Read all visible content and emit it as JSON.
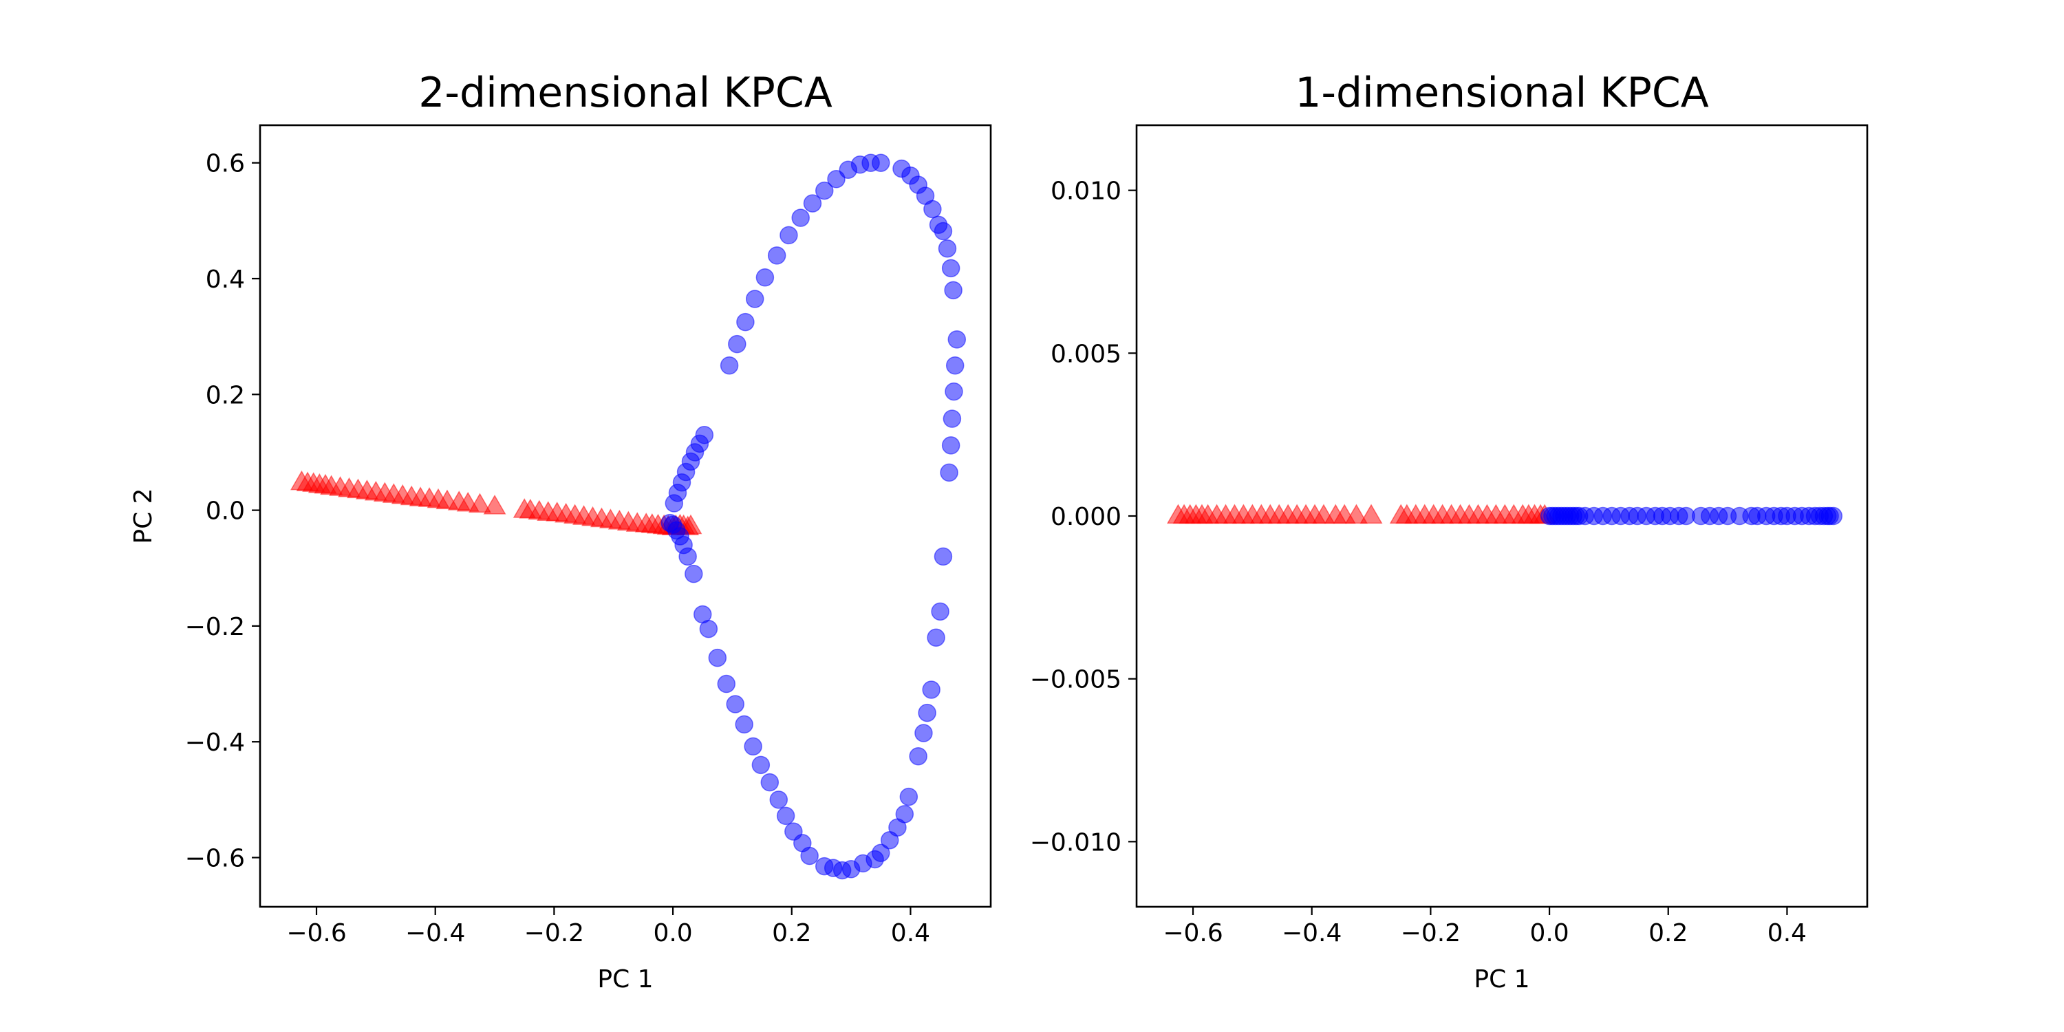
{
  "chart_data": [
    {
      "type": "scatter",
      "title": "2-dimensional KPCA",
      "xlabel": "PC 1",
      "ylabel": "PC 2",
      "xlim": [
        -0.695,
        0.535
      ],
      "ylim": [
        -0.685,
        0.665
      ],
      "xticks": [
        -0.6,
        -0.4,
        -0.2,
        0.0,
        0.2,
        0.4
      ],
      "xtick_labels": [
        "−0.6",
        "−0.4",
        "−0.2",
        "0.0",
        "0.2",
        "0.4"
      ],
      "yticks": [
        -0.6,
        -0.4,
        -0.2,
        0.0,
        0.2,
        0.4,
        0.6
      ],
      "ytick_labels": [
        "−0.6",
        "−0.4",
        "−0.2",
        "0.0",
        "0.2",
        "0.4",
        "0.6"
      ],
      "grid": false,
      "series": [
        {
          "marker": "triangle",
          "color": "#ff0000",
          "alpha": 0.5,
          "points": [
            [
              -0.625,
              0.048
            ],
            [
              -0.615,
              0.046
            ],
            [
              -0.605,
              0.045
            ],
            [
              -0.595,
              0.043
            ],
            [
              -0.585,
              0.042
            ],
            [
              -0.575,
              0.04
            ],
            [
              -0.56,
              0.038
            ],
            [
              -0.545,
              0.036
            ],
            [
              -0.53,
              0.034
            ],
            [
              -0.515,
              0.032
            ],
            [
              -0.5,
              0.03
            ],
            [
              -0.485,
              0.028
            ],
            [
              -0.47,
              0.026
            ],
            [
              -0.455,
              0.024
            ],
            [
              -0.44,
              0.022
            ],
            [
              -0.425,
              0.02
            ],
            [
              -0.41,
              0.019
            ],
            [
              -0.395,
              0.017
            ],
            [
              -0.38,
              0.015
            ],
            [
              -0.36,
              0.013
            ],
            [
              -0.345,
              0.011
            ],
            [
              -0.325,
              0.009
            ],
            [
              -0.3,
              0.006
            ],
            [
              -0.25,
              0.0
            ],
            [
              -0.24,
              -0.001
            ],
            [
              -0.225,
              -0.003
            ],
            [
              -0.21,
              -0.005
            ],
            [
              -0.195,
              -0.006
            ],
            [
              -0.18,
              -0.008
            ],
            [
              -0.165,
              -0.01
            ],
            [
              -0.15,
              -0.012
            ],
            [
              -0.135,
              -0.014
            ],
            [
              -0.12,
              -0.016
            ],
            [
              -0.105,
              -0.018
            ],
            [
              -0.09,
              -0.02
            ],
            [
              -0.075,
              -0.022
            ],
            [
              -0.06,
              -0.024
            ],
            [
              -0.045,
              -0.025
            ],
            [
              -0.035,
              -0.026
            ],
            [
              -0.025,
              -0.027
            ],
            [
              -0.015,
              -0.028
            ],
            [
              -0.008,
              -0.029
            ],
            [
              0.0,
              -0.03
            ],
            [
              0.005,
              -0.028
            ],
            [
              0.012,
              -0.027
            ],
            [
              0.018,
              -0.028
            ],
            [
              0.025,
              -0.03
            ],
            [
              0.03,
              -0.028
            ]
          ]
        },
        {
          "marker": "circle",
          "color": "#0000ff",
          "alpha": 0.5,
          "points": [
            [
              0.002,
              0.012
            ],
            [
              0.008,
              0.03
            ],
            [
              0.015,
              0.048
            ],
            [
              0.022,
              0.066
            ],
            [
              0.03,
              0.084
            ],
            [
              0.037,
              0.1
            ],
            [
              0.045,
              0.115
            ],
            [
              0.053,
              0.13
            ],
            [
              0.095,
              0.25
            ],
            [
              0.108,
              0.287
            ],
            [
              0.122,
              0.325
            ],
            [
              0.138,
              0.365
            ],
            [
              0.155,
              0.402
            ],
            [
              0.175,
              0.44
            ],
            [
              0.195,
              0.475
            ],
            [
              0.215,
              0.505
            ],
            [
              0.235,
              0.53
            ],
            [
              0.255,
              0.552
            ],
            [
              0.275,
              0.572
            ],
            [
              0.295,
              0.588
            ],
            [
              0.315,
              0.597
            ],
            [
              0.333,
              0.6
            ],
            [
              0.35,
              0.6
            ],
            [
              0.385,
              0.59
            ],
            [
              0.4,
              0.578
            ],
            [
              0.413,
              0.562
            ],
            [
              0.425,
              0.543
            ],
            [
              0.437,
              0.52
            ],
            [
              0.447,
              0.493
            ],
            [
              0.455,
              0.482
            ],
            [
              0.462,
              0.452
            ],
            [
              0.468,
              0.418
            ],
            [
              0.472,
              0.38
            ],
            [
              0.478,
              0.295
            ],
            [
              0.475,
              0.25
            ],
            [
              0.473,
              0.205
            ],
            [
              0.47,
              0.158
            ],
            [
              0.468,
              0.112
            ],
            [
              0.465,
              0.065
            ],
            [
              0.455,
              -0.08
            ],
            [
              0.45,
              -0.175
            ],
            [
              0.443,
              -0.22
            ],
            [
              0.435,
              -0.31
            ],
            [
              0.428,
              -0.35
            ],
            [
              0.422,
              -0.385
            ],
            [
              0.413,
              -0.425
            ],
            [
              0.397,
              -0.495
            ],
            [
              0.39,
              -0.525
            ],
            [
              0.378,
              -0.548
            ],
            [
              0.365,
              -0.57
            ],
            [
              0.35,
              -0.592
            ],
            [
              0.34,
              -0.603
            ],
            [
              0.32,
              -0.61
            ],
            [
              0.3,
              -0.62
            ],
            [
              0.285,
              -0.622
            ],
            [
              0.27,
              -0.618
            ],
            [
              0.255,
              -0.615
            ],
            [
              0.23,
              -0.597
            ],
            [
              0.218,
              -0.575
            ],
            [
              0.203,
              -0.555
            ],
            [
              0.19,
              -0.528
            ],
            [
              0.178,
              -0.5
            ],
            [
              0.163,
              -0.47
            ],
            [
              0.148,
              -0.44
            ],
            [
              0.135,
              -0.408
            ],
            [
              0.12,
              -0.37
            ],
            [
              0.105,
              -0.335
            ],
            [
              0.09,
              -0.3
            ],
            [
              0.075,
              -0.255
            ],
            [
              0.06,
              -0.205
            ],
            [
              0.05,
              -0.18
            ],
            [
              0.035,
              -0.11
            ],
            [
              0.025,
              -0.08
            ],
            [
              0.018,
              -0.06
            ],
            [
              0.012,
              -0.045
            ],
            [
              0.006,
              -0.035
            ],
            [
              0.0,
              -0.025
            ],
            [
              -0.005,
              -0.022
            ]
          ]
        }
      ]
    },
    {
      "type": "scatter",
      "title": "1-dimensional KPCA",
      "xlabel": "PC 1",
      "ylabel": "",
      "xlim": [
        -0.695,
        0.535
      ],
      "ylim": [
        -0.012,
        0.012
      ],
      "xticks": [
        -0.6,
        -0.4,
        -0.2,
        0.0,
        0.2,
        0.4
      ],
      "xtick_labels": [
        "−0.6",
        "−0.4",
        "−0.2",
        "0.0",
        "0.2",
        "0.4"
      ],
      "yticks": [
        -0.01,
        -0.005,
        0.0,
        0.005,
        0.01
      ],
      "ytick_labels": [
        "−0.010",
        "−0.005",
        "0.000",
        "0.005",
        "0.010"
      ],
      "grid": false,
      "series": [
        {
          "marker": "triangle",
          "color": "#ff0000",
          "alpha": 0.5,
          "y_constant": 0.0,
          "x": [
            -0.625,
            -0.615,
            -0.605,
            -0.595,
            -0.585,
            -0.575,
            -0.56,
            -0.545,
            -0.53,
            -0.515,
            -0.5,
            -0.485,
            -0.47,
            -0.455,
            -0.44,
            -0.425,
            -0.41,
            -0.395,
            -0.38,
            -0.36,
            -0.345,
            -0.325,
            -0.3,
            -0.25,
            -0.24,
            -0.225,
            -0.21,
            -0.195,
            -0.18,
            -0.165,
            -0.15,
            -0.135,
            -0.12,
            -0.105,
            -0.09,
            -0.075,
            -0.06,
            -0.045,
            -0.035,
            -0.025,
            -0.015,
            -0.008
          ]
        },
        {
          "marker": "circle",
          "color": "#0000ff",
          "alpha": 0.5,
          "y_constant": 0.0,
          "x": [
            0.0,
            0.005,
            0.01,
            0.015,
            0.02,
            0.025,
            0.03,
            0.035,
            0.04,
            0.045,
            0.05,
            0.06,
            0.075,
            0.09,
            0.105,
            0.12,
            0.135,
            0.148,
            0.163,
            0.178,
            0.19,
            0.203,
            0.218,
            0.23,
            0.255,
            0.27,
            0.285,
            0.3,
            0.32,
            0.34,
            0.35,
            0.365,
            0.378,
            0.39,
            0.4,
            0.413,
            0.425,
            0.437,
            0.447,
            0.455,
            0.462,
            0.468,
            0.472,
            0.478
          ]
        }
      ]
    }
  ]
}
